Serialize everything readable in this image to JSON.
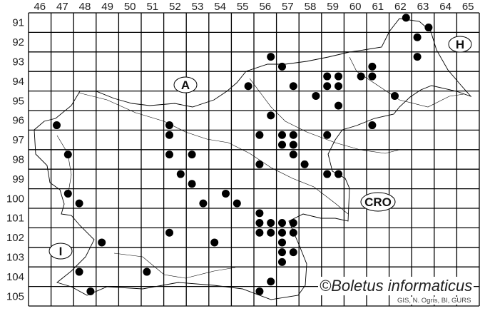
{
  "map": {
    "grid_columns": [
      "46",
      "47",
      "48",
      "49",
      "50",
      "51",
      "52",
      "53",
      "54",
      "55",
      "56",
      "57",
      "58",
      "59",
      "60",
      "61",
      "62",
      "63",
      "64",
      "65"
    ],
    "grid_rows": [
      "91",
      "92",
      "93",
      "94",
      "95",
      "96",
      "97",
      "98",
      "99",
      "100",
      "101",
      "102",
      "103",
      "104",
      "105"
    ],
    "region_labels": {
      "austria": "A",
      "hungary": "H",
      "croatia": "CRO",
      "italy": "I"
    },
    "dot_color": "#000000",
    "quadrant_order": "1=top-left, 2=top-right, 3=bottom-left, 4=bottom-right",
    "records": [
      {
        "col": 62,
        "row": 91,
        "q": 2
      },
      {
        "col": 63,
        "row": 91,
        "q": 4
      },
      {
        "col": 63,
        "row": 92,
        "q": 1
      },
      {
        "col": 63,
        "row": 93,
        "q": 1
      },
      {
        "col": 56,
        "row": 93,
        "q": 2
      },
      {
        "col": 57,
        "row": 93,
        "q": 3
      },
      {
        "col": 61,
        "row": 93,
        "q": 3
      },
      {
        "col": 59,
        "row": 94,
        "q": 1
      },
      {
        "col": 59,
        "row": 94,
        "q": 2
      },
      {
        "col": 60,
        "row": 94,
        "q": 2
      },
      {
        "col": 61,
        "row": 94,
        "q": 1
      },
      {
        "col": 55,
        "row": 94,
        "q": 4
      },
      {
        "col": 57,
        "row": 94,
        "q": 4
      },
      {
        "col": 59,
        "row": 94,
        "q": 3
      },
      {
        "col": 59,
        "row": 94,
        "q": 4
      },
      {
        "col": 58,
        "row": 95,
        "q": 2
      },
      {
        "col": 62,
        "row": 95,
        "q": 1
      },
      {
        "col": 59,
        "row": 95,
        "q": 4
      },
      {
        "col": 56,
        "row": 96,
        "q": 2
      },
      {
        "col": 52,
        "row": 96,
        "q": 3
      },
      {
        "col": 47,
        "row": 96,
        "q": 3
      },
      {
        "col": 61,
        "row": 96,
        "q": 3
      },
      {
        "col": 52,
        "row": 97,
        "q": 1
      },
      {
        "col": 56,
        "row": 97,
        "q": 1
      },
      {
        "col": 57,
        "row": 97,
        "q": 1
      },
      {
        "col": 57,
        "row": 97,
        "q": 2
      },
      {
        "col": 59,
        "row": 97,
        "q": 1
      },
      {
        "col": 57,
        "row": 97,
        "q": 3
      },
      {
        "col": 57,
        "row": 97,
        "q": 4
      },
      {
        "col": 47,
        "row": 98,
        "q": 2
      },
      {
        "col": 52,
        "row": 98,
        "q": 1
      },
      {
        "col": 53,
        "row": 98,
        "q": 1
      },
      {
        "col": 57,
        "row": 98,
        "q": 2
      },
      {
        "col": 58,
        "row": 98,
        "q": 3
      },
      {
        "col": 56,
        "row": 98,
        "q": 3
      },
      {
        "col": 52,
        "row": 99,
        "q": 2
      },
      {
        "col": 53,
        "row": 99,
        "q": 3
      },
      {
        "col": 59,
        "row": 99,
        "q": 1
      },
      {
        "col": 59,
        "row": 99,
        "q": 2
      },
      {
        "col": 47,
        "row": 100,
        "q": 2
      },
      {
        "col": 48,
        "row": 100,
        "q": 3
      },
      {
        "col": 54,
        "row": 100,
        "q": 2
      },
      {
        "col": 53,
        "row": 100,
        "q": 4
      },
      {
        "col": 55,
        "row": 100,
        "q": 3
      },
      {
        "col": 56,
        "row": 101,
        "q": 1
      },
      {
        "col": 56,
        "row": 101,
        "q": 3
      },
      {
        "col": 56,
        "row": 101,
        "q": 4
      },
      {
        "col": 57,
        "row": 101,
        "q": 3
      },
      {
        "col": 57,
        "row": 101,
        "q": 4
      },
      {
        "col": 56,
        "row": 102,
        "q": 1
      },
      {
        "col": 56,
        "row": 102,
        "q": 2
      },
      {
        "col": 57,
        "row": 102,
        "q": 1
      },
      {
        "col": 57,
        "row": 102,
        "q": 2
      },
      {
        "col": 52,
        "row": 102,
        "q": 1
      },
      {
        "col": 49,
        "row": 102,
        "q": 3
      },
      {
        "col": 54,
        "row": 102,
        "q": 3
      },
      {
        "col": 57,
        "row": 102,
        "q": 3
      },
      {
        "col": 57,
        "row": 103,
        "q": 1
      },
      {
        "col": 57,
        "row": 103,
        "q": 2
      },
      {
        "col": 57,
        "row": 103,
        "q": 3
      },
      {
        "col": 48,
        "row": 104,
        "q": 1
      },
      {
        "col": 51,
        "row": 104,
        "q": 1
      },
      {
        "col": 56,
        "row": 104,
        "q": 4
      },
      {
        "col": 48,
        "row": 105,
        "q": 2
      },
      {
        "col": 56,
        "row": 105,
        "q": 1
      }
    ]
  },
  "copyright": "©Boletus informaticus",
  "credit": "GIS, N. Ogris, BI, GURS"
}
